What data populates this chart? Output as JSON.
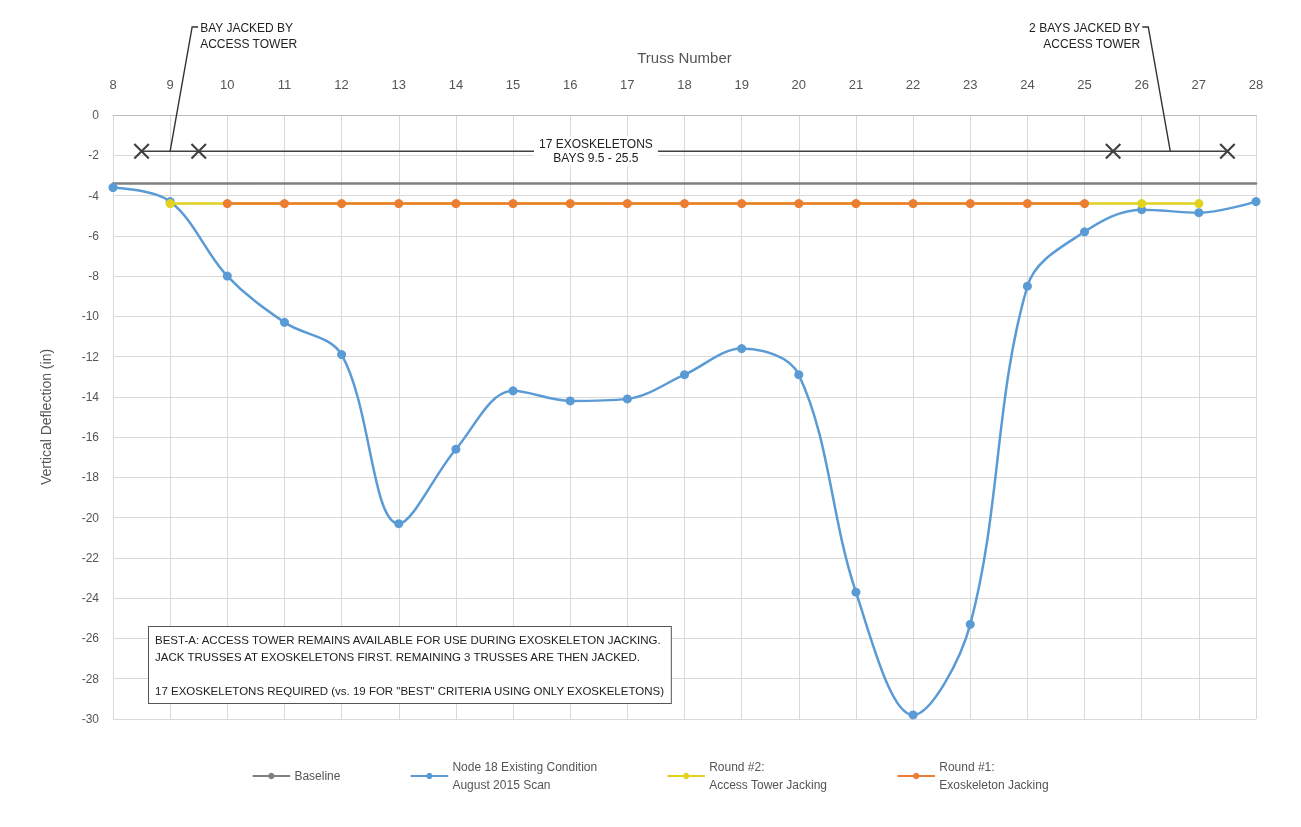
{
  "chart_data": {
    "type": "line",
    "xlabel": "Truss Number",
    "ylabel": "Vertical Deflection (in)",
    "xlim": [
      8,
      28
    ],
    "xticks": [
      8,
      9,
      10,
      11,
      12,
      13,
      14,
      15,
      16,
      17,
      18,
      19,
      20,
      21,
      22,
      23,
      24,
      25,
      26,
      27,
      28
    ],
    "ylim": [
      -30,
      0
    ],
    "yticks": [
      -30,
      -28,
      -26,
      -24,
      -22,
      -20,
      -18,
      -16,
      -14,
      -12,
      -10,
      -8,
      -6,
      -4,
      -2,
      0
    ],
    "grid": true,
    "legend": "bottom",
    "series": [
      {
        "name": "Baseline",
        "color": "#808080",
        "marker": "none",
        "x": [
          8,
          28
        ],
        "values": [
          -3.4,
          -3.4
        ]
      },
      {
        "name": "Node 18 Existing Condition\nAugust 2015 Scan",
        "color": "#5b9bd5",
        "marker": "circle",
        "x": [
          8,
          9,
          10,
          11,
          12,
          13,
          14,
          15,
          16,
          17,
          18,
          19,
          20,
          21,
          22,
          23,
          24,
          25,
          26,
          27,
          28
        ],
        "values": [
          -3.6,
          -4.3,
          -8.0,
          -10.3,
          -11.9,
          -20.3,
          -16.6,
          -13.7,
          -14.2,
          -14.1,
          -12.9,
          -11.6,
          -12.9,
          -23.7,
          -29.8,
          -25.3,
          -8.5,
          -5.8,
          -4.7,
          -4.85,
          -4.3
        ]
      },
      {
        "name": "Round #2:\nAccess Tower Jacking",
        "color": "#e0d21e",
        "marker": "circle",
        "x": [
          9,
          26,
          27
        ],
        "values": [
          -4.4,
          -4.4,
          -4.4
        ]
      },
      {
        "color": "#404040",
        "marker": "cross",
        "x": [
          8.5,
          9.5,
          25.5,
          27.5
        ],
        "values": [
          -1.8,
          -1.8,
          -1.8,
          -1.8
        ]
      },
      {
        "name": "Round #1:\nExoskeleton Jacking",
        "color": "#ed7d31",
        "marker": "circle",
        "x": [
          10,
          11,
          12,
          13,
          14,
          15,
          16,
          17,
          18,
          19,
          20,
          21,
          22,
          23,
          24,
          25
        ],
        "values": [
          -4.4,
          -4.4,
          -4.4,
          -4.4,
          -4.4,
          -4.4,
          -4.4,
          -4.4,
          -4.4,
          -4.4,
          -4.4,
          -4.4,
          -4.4,
          -4.4,
          -4.4,
          -4.4
        ]
      }
    ],
    "annotations": [
      {
        "text": "BAY JACKED BY\nACCESS TOWER",
        "x": 9,
        "y": -1.8
      },
      "17 EXOSKELETONS\nBAYS 9.5 - 25.5",
      {
        "text": "2 BAYS JACKED BY\nACCESS TOWER",
        "x": 26.5,
        "y": -1.8
      },
      "BEST-A: ACCESS TOWER REMAINS AVAILABLE FOR USE DURING EXOSKELETON JACKING.\nJACK TRUSSES AT EXOSKELETONS FIRST. REMAINING 3 TRUSSES ARE THEN JACKED.\n\n17 EXOSKELETONS REQUIRED (vs. 19 FOR \"BEST\" CRITERIA USING ONLY EXOSKELETONS)"
    ]
  }
}
